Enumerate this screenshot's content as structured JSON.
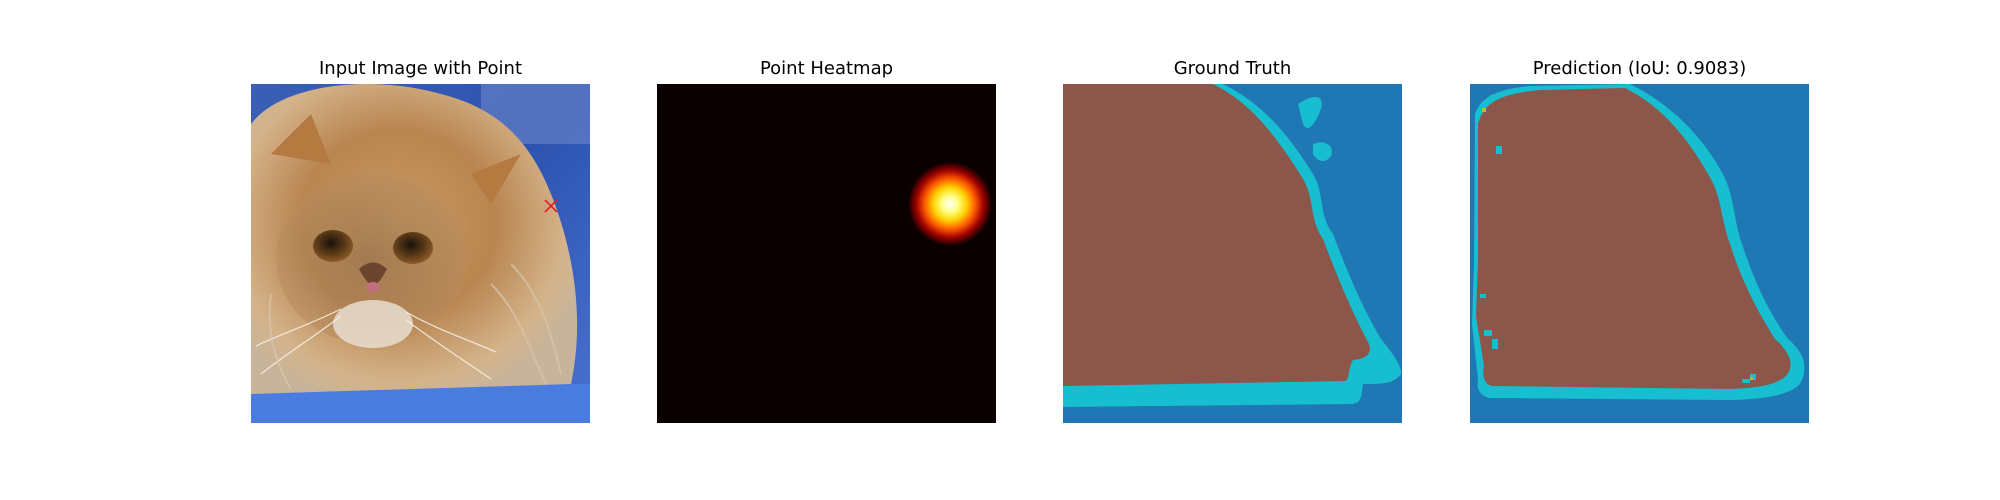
{
  "panels": [
    {
      "title": "Input Image with Point",
      "image": "photo of fluffy orange persian cat on blue background",
      "marker": "red-x"
    },
    {
      "title": "Point Heatmap",
      "image": "gaussian heatmap blob"
    },
    {
      "title": "Ground Truth",
      "image": "segmentation mask"
    },
    {
      "title": "Prediction (IoU: 0.9083)",
      "image": "predicted segmentation mask"
    }
  ],
  "colors": {
    "background_class": "#1f77b4",
    "foreground_class": "#8c564b",
    "boundary_class": "#17becf",
    "heatmap_background": "#0b0000",
    "marker": "#e0202a"
  }
}
